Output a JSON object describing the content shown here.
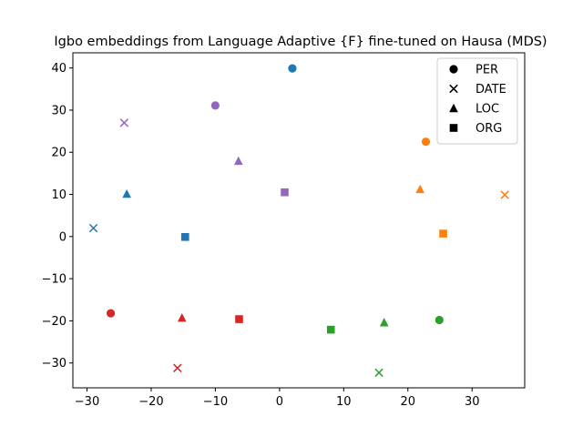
{
  "chart_data": {
    "type": "scatter",
    "title": "Igbo embeddings from Language Adaptive {F} fine-tuned on Hausa (MDS)",
    "xlabel": "",
    "ylabel": "",
    "xlim": [
      -32.2,
      38.2
    ],
    "ylim": [
      -35.9,
      43.6
    ],
    "xticks": [
      -30,
      -20,
      -10,
      0,
      10,
      20,
      30
    ],
    "yticks": [
      -30,
      -20,
      -10,
      0,
      10,
      20,
      30,
      40
    ],
    "xtick_labels": [
      "−30",
      "−20",
      "−10",
      "0",
      "10",
      "20",
      "30"
    ],
    "ytick_labels": [
      "−30",
      "−20",
      "−10",
      "0",
      "10",
      "20",
      "30",
      "40"
    ],
    "grid": false,
    "legend": {
      "placement": "top-right",
      "entries": [
        {
          "label": "PER",
          "marker": "circle"
        },
        {
          "label": "DATE",
          "marker": "x"
        },
        {
          "label": "LOC",
          "marker": "triangle"
        },
        {
          "label": "ORG",
          "marker": "square"
        }
      ]
    },
    "groups": [
      {
        "color": "#1f77b4",
        "points": [
          {
            "marker": "circle",
            "x": 2.0,
            "y": 39.9
          },
          {
            "marker": "x",
            "x": -29.0,
            "y": 2.0
          },
          {
            "marker": "triangle",
            "x": -23.8,
            "y": 10.1
          },
          {
            "marker": "square",
            "x": -14.7,
            "y": -0.1
          }
        ]
      },
      {
        "color": "#ff7f0e",
        "points": [
          {
            "marker": "circle",
            "x": 22.8,
            "y": 22.5
          },
          {
            "marker": "x",
            "x": 35.1,
            "y": 9.9
          },
          {
            "marker": "triangle",
            "x": 21.9,
            "y": 11.2
          },
          {
            "marker": "square",
            "x": 25.5,
            "y": 0.7
          }
        ]
      },
      {
        "color": "#2ca02c",
        "points": [
          {
            "marker": "circle",
            "x": 24.9,
            "y": -19.8
          },
          {
            "marker": "x",
            "x": 15.5,
            "y": -32.3
          },
          {
            "marker": "triangle",
            "x": 16.3,
            "y": -20.4
          },
          {
            "marker": "square",
            "x": 8.0,
            "y": -22.1
          }
        ]
      },
      {
        "color": "#d62728",
        "points": [
          {
            "marker": "circle",
            "x": -26.3,
            "y": -18.2
          },
          {
            "marker": "x",
            "x": -15.9,
            "y": -31.2
          },
          {
            "marker": "triangle",
            "x": -15.2,
            "y": -19.3
          },
          {
            "marker": "square",
            "x": -6.3,
            "y": -19.6
          }
        ]
      },
      {
        "color": "#9467bd",
        "points": [
          {
            "marker": "circle",
            "x": -10.0,
            "y": 31.1
          },
          {
            "marker": "x",
            "x": -24.2,
            "y": 27.0
          },
          {
            "marker": "triangle",
            "x": -6.4,
            "y": 17.9
          },
          {
            "marker": "square",
            "x": 0.8,
            "y": 10.5
          }
        ]
      }
    ]
  }
}
